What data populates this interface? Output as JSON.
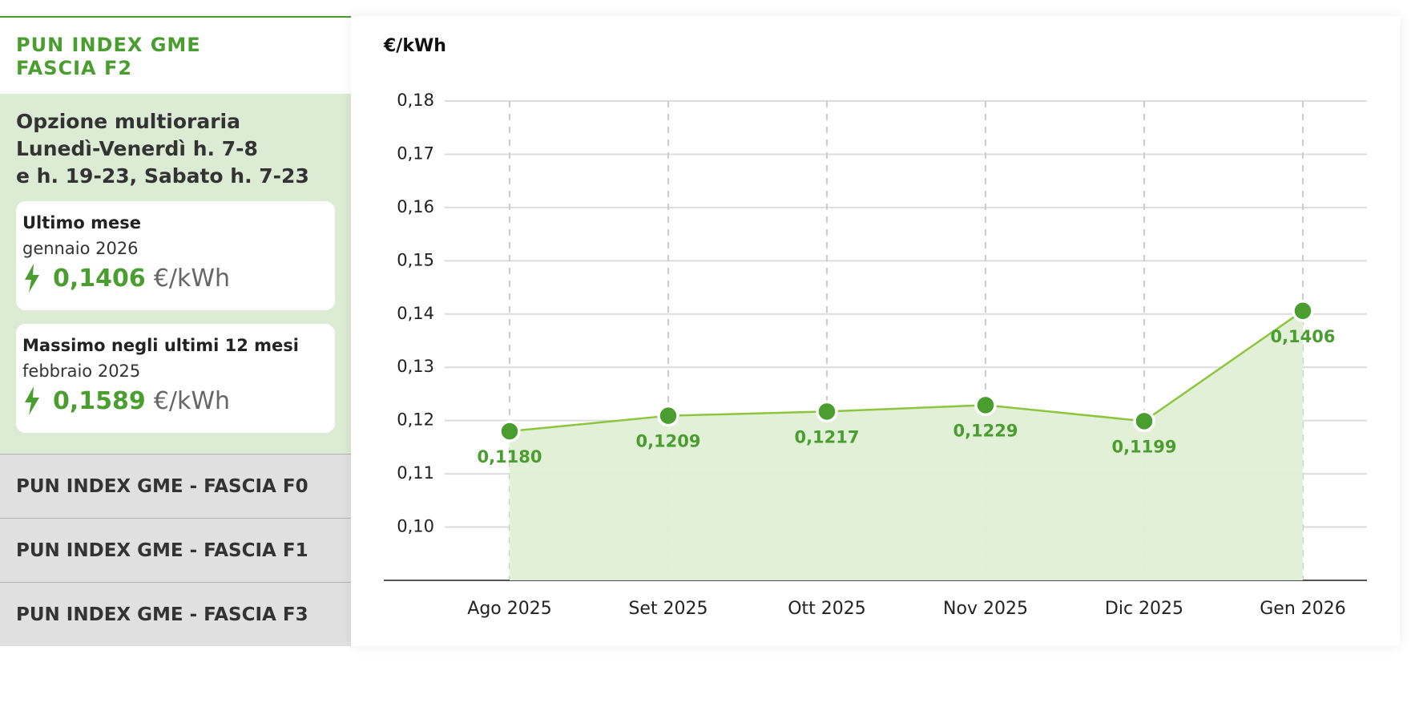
{
  "sidebar": {
    "active": {
      "title_line1": "PUN INDEX GME",
      "title_line2": "FASCIA F2",
      "description": [
        "Opzione multioraria",
        "Lunedì-Venerdì h. 7-8",
        "e h. 19-23, Sabato h. 7-23"
      ],
      "cards": [
        {
          "heading": "Ultimo mese",
          "period": "gennaio 2026",
          "value": "0,1406",
          "unit": "€/kWh"
        },
        {
          "heading": "Massimo negli ultimi 12 mesi",
          "period": "febbraio 2025",
          "value": "0,1589",
          "unit": "€/kWh"
        }
      ]
    },
    "tabs": [
      "PUN INDEX GME - FASCIA F0",
      "PUN INDEX GME - FASCIA F1",
      "PUN INDEX GME - FASCIA F3"
    ]
  },
  "chart_data": {
    "type": "line",
    "y_label": "€/kWh",
    "categories": [
      "Ago 2025",
      "Set 2025",
      "Ott 2025",
      "Nov 2025",
      "Dic 2025",
      "Gen 2026"
    ],
    "series": [
      {
        "name": "PUN INDEX GME FASCIA F2",
        "color": "#4a9e2f",
        "values": [
          0.118,
          0.1209,
          0.1217,
          0.1229,
          0.1199,
          0.1406
        ],
        "value_labels": [
          "0,1180",
          "0,1209",
          "0,1217",
          "0,1229",
          "0,1199",
          "0,1406"
        ]
      }
    ],
    "ylim": [
      0.09,
      0.18
    ],
    "yticks": [
      {
        "value": 0.1,
        "label": "0,10"
      },
      {
        "value": 0.11,
        "label": "0,11"
      },
      {
        "value": 0.12,
        "label": "0,12"
      },
      {
        "value": 0.13,
        "label": "0,13"
      },
      {
        "value": 0.14,
        "label": "0,14"
      },
      {
        "value": 0.15,
        "label": "0,15"
      },
      {
        "value": 0.16,
        "label": "0,16"
      },
      {
        "value": 0.17,
        "label": "0,17"
      },
      {
        "value": 0.18,
        "label": "0,18"
      }
    ],
    "grid": true,
    "area": true
  }
}
